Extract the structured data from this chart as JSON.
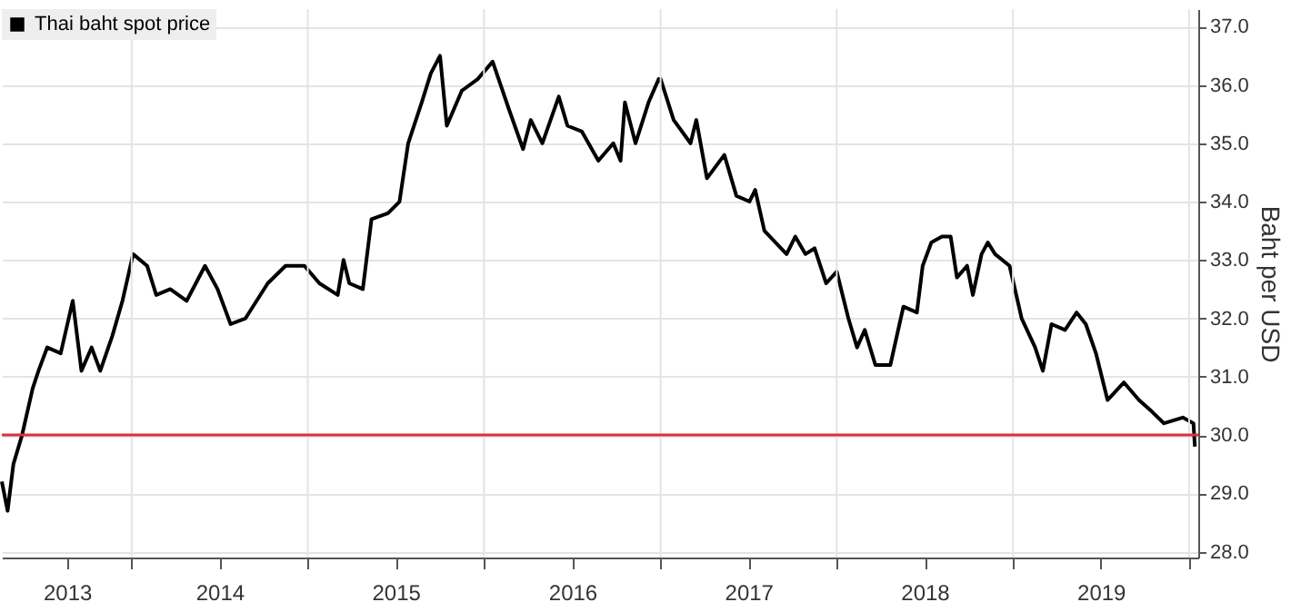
{
  "chart_data": {
    "type": "line",
    "x": [
      "2013-04-07",
      "2013-04-19",
      "2013-05-01",
      "2013-05-19",
      "2013-06-10",
      "2013-06-22",
      "2013-07-10",
      "2013-08-07",
      "2013-09-01",
      "2013-09-19",
      "2013-10-10",
      "2013-10-28",
      "2013-11-22",
      "2013-12-13",
      "2014-01-04",
      "2014-02-02",
      "2014-02-21",
      "2014-03-22",
      "2014-04-25",
      "2014-06-02",
      "2014-06-28",
      "2014-07-25",
      "2014-08-25",
      "2014-10-10",
      "2014-11-16",
      "2014-12-25",
      "2015-01-25",
      "2015-03-04",
      "2015-03-16",
      "2015-03-28",
      "2015-04-25",
      "2015-05-13",
      "2015-06-16",
      "2015-07-10",
      "2015-07-28",
      "2015-08-25",
      "2015-09-13",
      "2015-10-02",
      "2015-10-16",
      "2015-11-16",
      "2015-12-19",
      "2016-01-19",
      "2016-02-21",
      "2016-03-22",
      "2016-04-07",
      "2016-05-01",
      "2016-06-04",
      "2016-06-22",
      "2016-07-22",
      "2016-08-25",
      "2016-09-25",
      "2016-10-10",
      "2016-10-19",
      "2016-11-10",
      "2016-12-07",
      "2016-12-28",
      "2017-01-01",
      "2017-01-28",
      "2017-03-04",
      "2017-03-16",
      "2017-04-07",
      "2017-05-13",
      "2017-06-07",
      "2017-07-04",
      "2017-07-16",
      "2017-08-04",
      "2017-09-19",
      "2017-10-07",
      "2017-10-28",
      "2017-11-16",
      "2017-12-10",
      "2018-01-01",
      "2018-01-25",
      "2018-02-12",
      "2018-02-28",
      "2018-03-22",
      "2018-04-22",
      "2018-05-19",
      "2018-06-16",
      "2018-06-28",
      "2018-07-16",
      "2018-08-07",
      "2018-08-25",
      "2018-09-07",
      "2018-09-28",
      "2018-10-10",
      "2018-10-28",
      "2018-11-10",
      "2018-11-25",
      "2018-12-25",
      "2019-01-19",
      "2019-02-16",
      "2019-03-04",
      "2019-03-22",
      "2019-04-19",
      "2019-05-13",
      "2019-06-01",
      "2019-06-22",
      "2019-07-16",
      "2019-08-19",
      "2019-09-19",
      "2019-10-16",
      "2019-11-10",
      "2019-12-19",
      "2020-01-10",
      "2020-01-13"
    ],
    "series": [
      {
        "name": "Thai baht spot price",
        "color": "#000000",
        "values": [
          29.2,
          28.7,
          29.5,
          30.0,
          30.8,
          31.1,
          31.5,
          31.4,
          32.3,
          31.1,
          31.5,
          31.1,
          31.7,
          32.3,
          33.1,
          32.9,
          32.4,
          32.5,
          32.3,
          32.9,
          32.5,
          31.9,
          32.0,
          32.6,
          32.9,
          32.9,
          32.6,
          32.4,
          33.0,
          32.6,
          32.5,
          33.7,
          33.8,
          34.0,
          35.0,
          35.7,
          36.2,
          36.5,
          35.3,
          35.9,
          36.1,
          36.4,
          35.6,
          34.9,
          35.4,
          35.0,
          35.8,
          35.3,
          35.2,
          34.7,
          35.0,
          34.7,
          35.7,
          35.0,
          35.7,
          36.1,
          36.1,
          35.4,
          35.0,
          35.4,
          34.4,
          34.8,
          34.1,
          34.0,
          34.2,
          33.5,
          33.1,
          33.4,
          33.1,
          33.2,
          32.6,
          32.8,
          32.0,
          31.5,
          31.8,
          31.2,
          31.2,
          32.2,
          32.1,
          32.9,
          33.3,
          33.4,
          33.4,
          32.7,
          32.9,
          32.4,
          33.1,
          33.3,
          33.1,
          32.9,
          32.0,
          31.5,
          31.1,
          31.9,
          31.8,
          32.1,
          31.9,
          31.4,
          30.6,
          30.9,
          30.6,
          30.4,
          30.2,
          30.3,
          30.2,
          29.8
        ]
      }
    ],
    "xlim": [
      "2013-04-07",
      "2020-01-20"
    ],
    "xticks": [
      {
        "value": "2013-08-20",
        "label": "2013"
      },
      {
        "value": "2014-01-01",
        "label": null
      },
      {
        "value": "2014-07-02",
        "label": "2014"
      },
      {
        "value": "2015-01-01",
        "label": null
      },
      {
        "value": "2015-07-02",
        "label": "2015"
      },
      {
        "value": "2016-01-01",
        "label": null
      },
      {
        "value": "2016-07-02",
        "label": "2016"
      },
      {
        "value": "2017-01-01",
        "label": null
      },
      {
        "value": "2017-07-02",
        "label": "2017"
      },
      {
        "value": "2018-01-01",
        "label": null
      },
      {
        "value": "2018-07-02",
        "label": "2018"
      },
      {
        "value": "2019-01-01",
        "label": null
      },
      {
        "value": "2019-07-02",
        "label": "2019"
      },
      {
        "value": "2020-01-01",
        "label": null
      }
    ],
    "ylim": [
      27.9,
      37.3
    ],
    "yticks": [
      {
        "value": 28,
        "label": "28.0"
      },
      {
        "value": 29,
        "label": "29.0"
      },
      {
        "value": 30,
        "label": "30.0"
      },
      {
        "value": 31,
        "label": "31.0"
      },
      {
        "value": 32,
        "label": "32.0"
      },
      {
        "value": 33,
        "label": "33.0"
      },
      {
        "value": 34,
        "label": "34.0"
      },
      {
        "value": 35,
        "label": "35.0"
      },
      {
        "value": 36,
        "label": "36.0"
      },
      {
        "value": 37,
        "label": "37.0"
      }
    ],
    "ylabel": "Baht per USD",
    "ref_lines": [
      {
        "axis": "y",
        "value": 30,
        "color": "#d9303c"
      }
    ],
    "grid": true,
    "legend": "top left",
    "line_style": "solid"
  }
}
